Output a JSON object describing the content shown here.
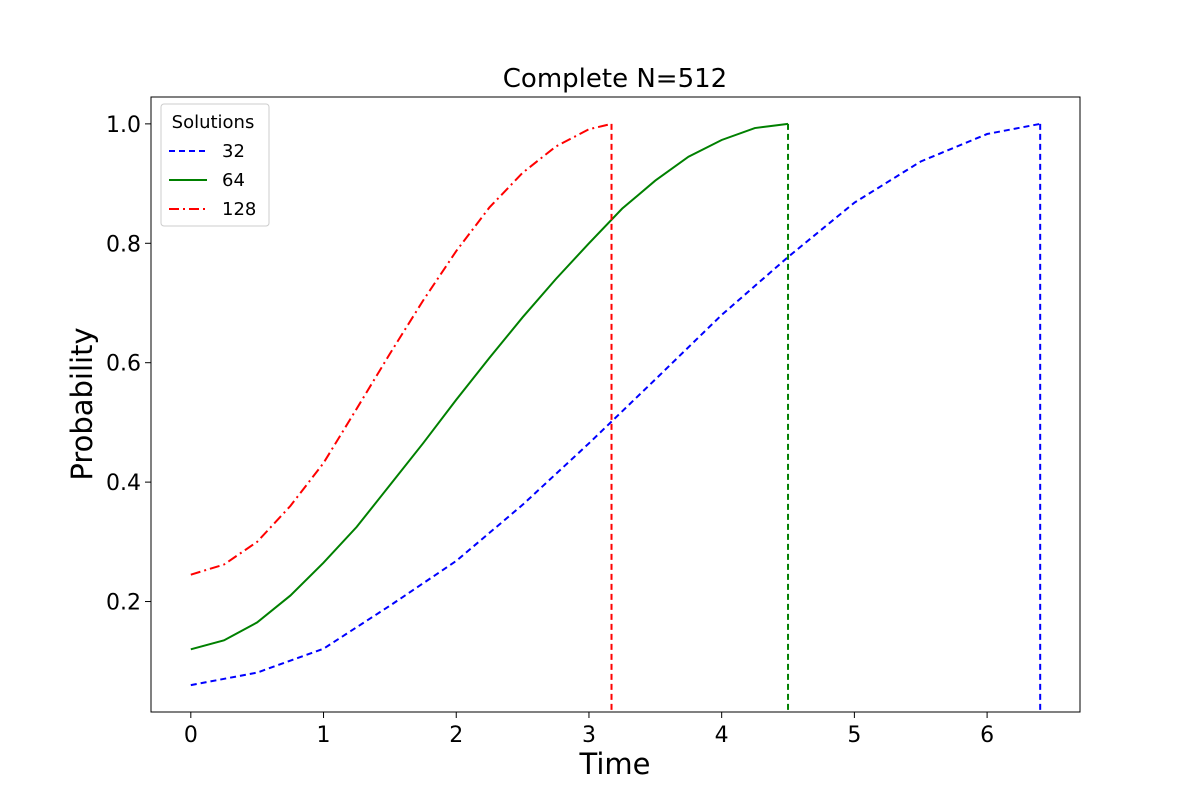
{
  "chart_data": {
    "type": "line",
    "title": "Complete N=512",
    "xlabel": "Time",
    "ylabel": "Probability",
    "xlim": [
      -0.3,
      6.7
    ],
    "ylim": [
      0.015,
      1.045
    ],
    "xticks": [
      0,
      1,
      2,
      3,
      4,
      5,
      6
    ],
    "xtick_labels": [
      "0",
      "1",
      "2",
      "3",
      "4",
      "5",
      "6"
    ],
    "yticks": [
      0.2,
      0.4,
      0.6,
      0.8,
      1.0
    ],
    "ytick_labels": [
      "0.2",
      "0.4",
      "0.6",
      "0.8",
      "1.0"
    ],
    "grid": false,
    "legend": {
      "title": "Solutions",
      "placement": "top-left"
    },
    "series": [
      {
        "name": "32",
        "color": "#0000ff",
        "dash": "dashed",
        "x": [
          0,
          0.5,
          1.0,
          1.5,
          2.0,
          2.5,
          3.0,
          3.5,
          4.0,
          4.5,
          5.0,
          5.5,
          6.0,
          6.4
        ],
        "y": [
          0.06,
          0.081,
          0.121,
          0.193,
          0.268,
          0.362,
          0.465,
          0.572,
          0.68,
          0.777,
          0.868,
          0.937,
          0.983,
          1.0
        ],
        "drop_x": 6.4
      },
      {
        "name": "64",
        "color": "#008000",
        "dash": "solid",
        "x": [
          0,
          0.25,
          0.5,
          0.75,
          1.0,
          1.25,
          1.5,
          1.75,
          2.0,
          2.25,
          2.5,
          2.75,
          3.0,
          3.25,
          3.5,
          3.75,
          4.0,
          4.25,
          4.5
        ],
        "y": [
          0.12,
          0.135,
          0.165,
          0.21,
          0.265,
          0.325,
          0.395,
          0.465,
          0.538,
          0.608,
          0.676,
          0.74,
          0.8,
          0.858,
          0.905,
          0.945,
          0.973,
          0.993,
          1.0
        ],
        "drop_x": 4.5
      },
      {
        "name": "128",
        "color": "#ff0000",
        "dash": "dashdot",
        "x": [
          0,
          0.25,
          0.5,
          0.75,
          1.0,
          1.25,
          1.5,
          1.75,
          2.0,
          2.25,
          2.5,
          2.75,
          3.0,
          3.17
        ],
        "y": [
          0.245,
          0.262,
          0.3,
          0.36,
          0.432,
          0.523,
          0.615,
          0.704,
          0.787,
          0.86,
          0.918,
          0.962,
          0.991,
          1.0
        ],
        "drop_x": 3.17
      }
    ]
  }
}
